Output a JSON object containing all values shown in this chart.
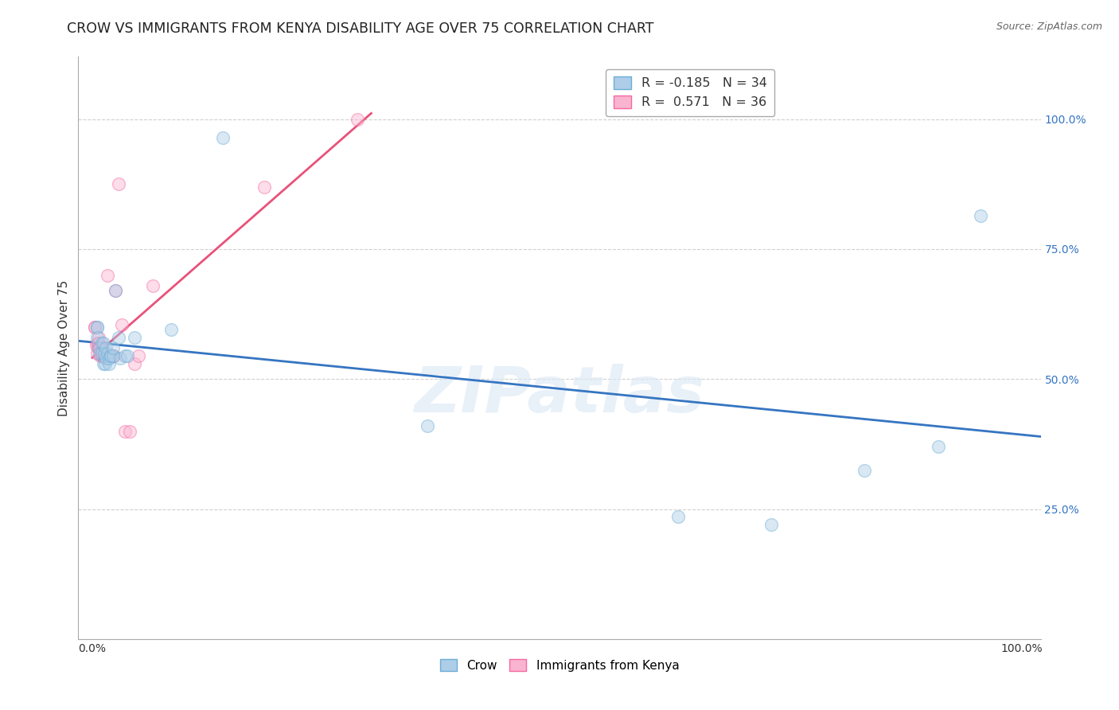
{
  "title": "CROW VS IMMIGRANTS FROM KENYA DISABILITY AGE OVER 75 CORRELATION CHART",
  "source": "Source: ZipAtlas.com",
  "ylabel": "Disability Age Over 75",
  "watermark": "ZIPatlas",
  "crow_x": [
    0.005,
    0.005,
    0.005,
    0.007,
    0.008,
    0.01,
    0.01,
    0.012,
    0.012,
    0.013,
    0.014,
    0.015,
    0.015,
    0.016,
    0.018,
    0.018,
    0.02,
    0.02,
    0.022,
    0.022,
    0.025,
    0.028,
    0.03,
    0.035,
    0.038,
    0.045,
    0.085,
    0.14,
    0.36,
    0.63,
    0.73,
    0.83,
    0.91,
    0.955
  ],
  "crow_y": [
    0.6,
    0.6,
    0.58,
    0.56,
    0.55,
    0.57,
    0.55,
    0.57,
    0.53,
    0.55,
    0.53,
    0.56,
    0.54,
    0.55,
    0.53,
    0.54,
    0.545,
    0.545,
    0.545,
    0.56,
    0.67,
    0.58,
    0.54,
    0.545,
    0.545,
    0.58,
    0.595,
    0.965,
    0.41,
    0.235,
    0.22,
    0.325,
    0.37,
    0.815
  ],
  "kenya_x": [
    0.003,
    0.003,
    0.004,
    0.005,
    0.005,
    0.006,
    0.007,
    0.007,
    0.008,
    0.009,
    0.009,
    0.01,
    0.01,
    0.011,
    0.012,
    0.012,
    0.013,
    0.014,
    0.014,
    0.015,
    0.016,
    0.018,
    0.018,
    0.02,
    0.022,
    0.023,
    0.025,
    0.028,
    0.032,
    0.035,
    0.04,
    0.045,
    0.05,
    0.065,
    0.185,
    0.285
  ],
  "kenya_y": [
    0.6,
    0.6,
    0.565,
    0.57,
    0.55,
    0.56,
    0.58,
    0.57,
    0.56,
    0.56,
    0.545,
    0.555,
    0.545,
    0.555,
    0.545,
    0.545,
    0.545,
    0.545,
    0.545,
    0.545,
    0.7,
    0.545,
    0.545,
    0.545,
    0.545,
    0.545,
    0.67,
    0.875,
    0.605,
    0.4,
    0.4,
    0.53,
    0.545,
    0.68,
    0.87,
    1.0
  ],
  "crow_color": "#6baed6",
  "crow_color_fill": "#aecde8",
  "kenya_color": "#f768a1",
  "kenya_color_fill": "#f9b4cf",
  "blue_line_color": "#3575c2",
  "red_line_color": "#e8527a",
  "background_color": "#ffffff",
  "grid_color": "#d0d0d0",
  "title_fontsize": 12.5,
  "label_fontsize": 11,
  "tick_fontsize": 10,
  "marker_size": 130,
  "marker_alpha": 0.45,
  "xlim": [
    -0.015,
    1.02
  ],
  "ylim": [
    0.0,
    1.12
  ],
  "yticks_right": [
    0.25,
    0.5,
    0.75,
    1.0
  ],
  "ytick_labels_right": [
    "25.0%",
    "50.0%",
    "75.0%",
    "100.0%"
  ],
  "yticks_grid": [
    0.25,
    0.5,
    0.75,
    1.0
  ],
  "xticks": [
    0.0,
    0.25,
    0.5,
    0.75,
    1.0
  ],
  "xtick_labels": [
    "0.0%",
    "",
    "",
    "",
    "100.0%"
  ],
  "legend_crow": "R = -0.185   N = 34",
  "legend_kenya": "R =  0.571   N = 36",
  "bottom_legend_crow": "Crow",
  "bottom_legend_kenya": "Immigrants from Kenya"
}
